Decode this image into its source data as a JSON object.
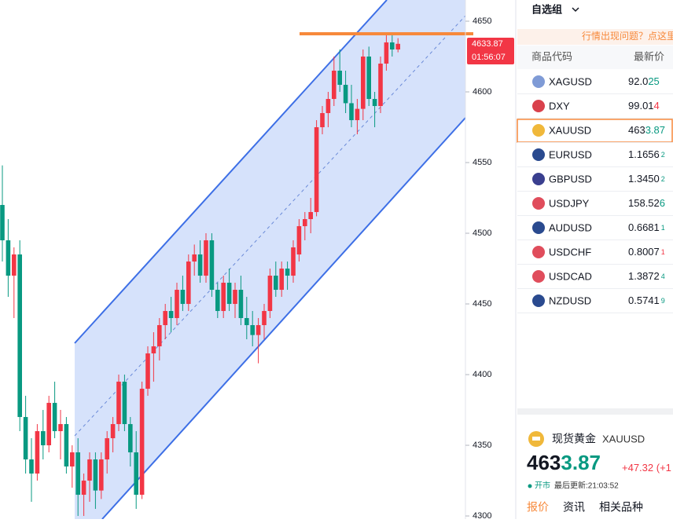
{
  "chart_data": {
    "type": "candlestick",
    "ylim": [
      4297.8,
      4665
    ],
    "yticks": [
      4650,
      4600,
      4550,
      4500,
      4450,
      4400,
      4350,
      4300
    ],
    "up_color": "#f23645",
    "down_color": "#089981",
    "last_price": 4633.87,
    "countdown": "01:56:07",
    "open": [
      4520,
      4495,
      4470,
      4485,
      4370,
      4340,
      4330,
      4360,
      4350,
      4380,
      4360,
      4365,
      4335,
      4345,
      4315,
      4325,
      4340,
      4318,
      4340,
      4355,
      4365,
      4395,
      4365,
      4345,
      4315,
      4390,
      4415,
      4420,
      4435,
      4445,
      4440,
      4460,
      4450,
      4480,
      4485,
      4470,
      4495,
      4460,
      4445,
      4465,
      4450,
      4460,
      4440,
      4435,
      4428,
      4435,
      4445,
      4470,
      4460,
      4475,
      4470,
      4485,
      4505,
      4510,
      4515,
      4575,
      4585,
      4595,
      4615,
      4605,
      4592,
      4580,
      4588,
      4625,
      4595,
      4590,
      4620,
      4635,
      4630
    ],
    "high": [
      4548,
      4510,
      4490,
      4495,
      4385,
      4355,
      4365,
      4375,
      4385,
      4395,
      4375,
      4370,
      4350,
      4355,
      4330,
      4345,
      4345,
      4345,
      4360,
      4370,
      4400,
      4400,
      4370,
      4360,
      4395,
      4420,
      4430,
      4440,
      4450,
      4455,
      4465,
      4470,
      4485,
      4492,
      4495,
      4500,
      4500,
      4465,
      4470,
      4475,
      4465,
      4470,
      4455,
      4445,
      4440,
      4450,
      4475,
      4480,
      4480,
      4480,
      4495,
      4510,
      4515,
      4525,
      4580,
      4590,
      4600,
      4625,
      4630,
      4615,
      4605,
      4595,
      4630,
      4632,
      4600,
      4625,
      4640,
      4640,
      4638
    ],
    "low": [
      4480,
      4455,
      4440,
      4360,
      4330,
      4310,
      4325,
      4340,
      4345,
      4355,
      4340,
      4330,
      4320,
      4300,
      4300,
      4310,
      4305,
      4312,
      4330,
      4345,
      4360,
      4360,
      4335,
      4305,
      4312,
      4385,
      4395,
      4410,
      4425,
      4430,
      4435,
      4445,
      4445,
      4470,
      4465,
      4465,
      4455,
      4440,
      4440,
      4445,
      4440,
      4435,
      4425,
      4420,
      4408,
      4425,
      4440,
      4455,
      4455,
      4460,
      4465,
      4480,
      4495,
      4500,
      4512,
      4570,
      4575,
      4590,
      4600,
      4585,
      4575,
      4570,
      4580,
      4590,
      4575,
      4585,
      4615,
      4625,
      4628
    ],
    "close": [
      4495,
      4470,
      4485,
      4370,
      4340,
      4330,
      4360,
      4350,
      4380,
      4360,
      4365,
      4335,
      4345,
      4315,
      4325,
      4340,
      4318,
      4340,
      4355,
      4365,
      4395,
      4365,
      4345,
      4315,
      4390,
      4415,
      4420,
      4435,
      4445,
      4440,
      4460,
      4450,
      4480,
      4485,
      4470,
      4495,
      4460,
      4445,
      4465,
      4450,
      4460,
      4440,
      4435,
      4428,
      4435,
      4445,
      4470,
      4460,
      4475,
      4470,
      4490,
      4505,
      4510,
      4515,
      4575,
      4585,
      4595,
      4615,
      4605,
      4592,
      4580,
      4588,
      4625,
      4595,
      4590,
      4620,
      4635,
      4630,
      4634
    ]
  },
  "watchlist": {
    "group": "自选组",
    "notice": "行情出现问题？点这里",
    "headers": [
      "商品代码",
      "最新价"
    ],
    "rows": [
      {
        "symbol": "XAGUSD",
        "main": "92.0",
        "tail": "25",
        "tail_color": "#089981"
      },
      {
        "symbol": "DXY",
        "main": "99.01",
        "tail": "4",
        "tail_color": "#f23645"
      },
      {
        "symbol": "XAUUSD",
        "main": "463",
        "tail": "3.87",
        "tail_color": "#089981"
      },
      {
        "symbol": "EURUSD",
        "main": "1.1656",
        "small": "2",
        "tail_color": "#089981"
      },
      {
        "symbol": "GBPUSD",
        "main": "1.3450",
        "small": "2",
        "tail_color": "#089981"
      },
      {
        "symbol": "USDJPY",
        "main": "158.52",
        "tail": "6",
        "tail_color": "#089981"
      },
      {
        "symbol": "AUDUSD",
        "main": "0.6681",
        "small": "1",
        "tail_color": "#089981"
      },
      {
        "symbol": "USDCHF",
        "main": "0.8007",
        "small": "1",
        "tail_color": "#f23645"
      },
      {
        "symbol": "USDCAD",
        "main": "1.3872",
        "small": "4",
        "tail_color": "#089981"
      },
      {
        "symbol": "NZDUSD",
        "main": "0.5741",
        "small": "9",
        "tail_color": "#089981"
      }
    ]
  },
  "detail": {
    "name": "现货黄金",
    "symbol": "XAUUSD",
    "price_main": "463",
    "price_tail": "3.87",
    "change": "+47.32",
    "change_pct": "(+1",
    "status": "开市",
    "updated": "最后更新:21:03:52",
    "tabs": [
      "报价",
      "资讯",
      "相关品种"
    ]
  }
}
